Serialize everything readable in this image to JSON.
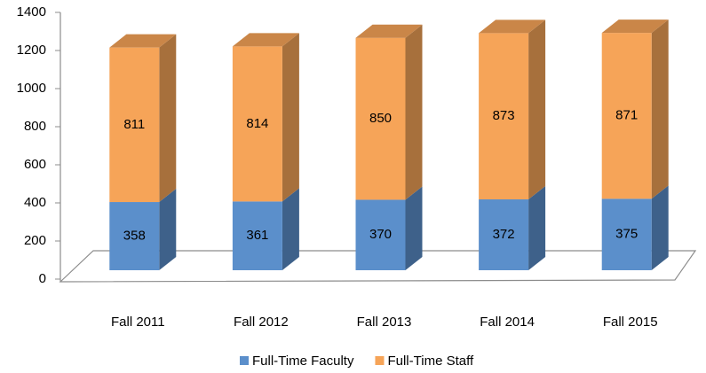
{
  "chart_data": {
    "type": "bar3d_stacked",
    "categories": [
      "Fall 2011",
      "Fall 2012",
      "Fall 2013",
      "Fall 2014",
      "Fall 2015"
    ],
    "series": [
      {
        "name": "Full-Time Faculty",
        "color": "#5b8fcb",
        "values": [
          358,
          361,
          370,
          372,
          375
        ]
      },
      {
        "name": "Full-Time Staff",
        "color": "#f6a458",
        "values": [
          811,
          814,
          850,
          873,
          871
        ]
      }
    ],
    "ylim": [
      0,
      1400
    ],
    "yticks": [
      0,
      200,
      400,
      600,
      800,
      1000,
      1200,
      1400
    ],
    "legend": "bottom"
  }
}
